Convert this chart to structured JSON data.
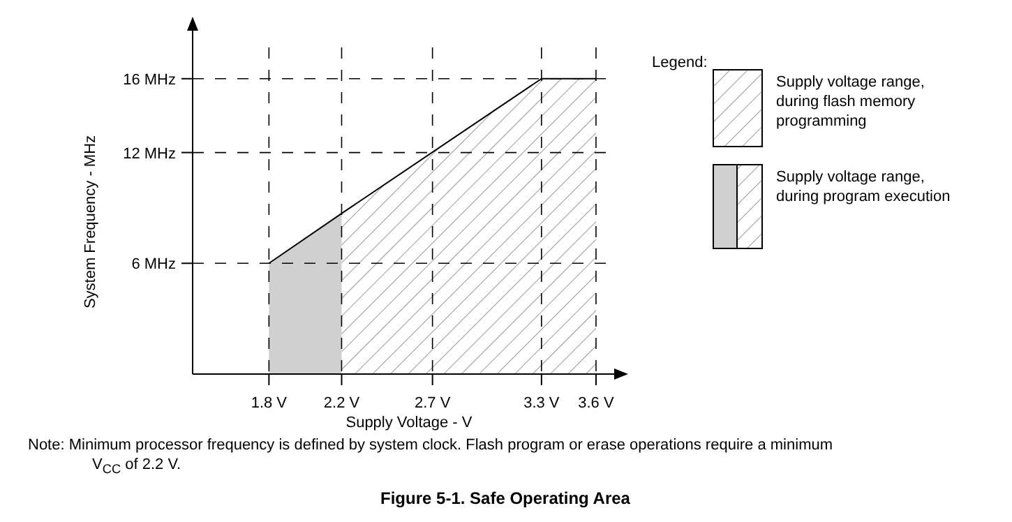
{
  "chart_data": {
    "type": "area",
    "title": "Figure 5-1. Safe Operating Area",
    "xlabel": "Supply Voltage - V",
    "ylabel": "System Frequency - MHz",
    "legend_title": "Legend:",
    "legend": "right",
    "grid": true,
    "xlim": [
      1.38,
      3.7
    ],
    "ylim": [
      0,
      18.6
    ],
    "xticks": [
      {
        "value": 1.8,
        "label": "1.8 V"
      },
      {
        "value": 2.2,
        "label": "2.2 V"
      },
      {
        "value": 2.7,
        "label": "2.7 V"
      },
      {
        "value": 3.3,
        "label": "3.3 V"
      },
      {
        "value": 3.6,
        "label": "3.6 V"
      }
    ],
    "yticks": [
      {
        "value": 6,
        "label": "6 MHz"
      },
      {
        "value": 12,
        "label": "12 MHz"
      },
      {
        "value": 16,
        "label": "16 MHz"
      }
    ],
    "series": [
      {
        "name": "Supply voltage range, during flash memory programming",
        "color": "#808080",
        "x": [
          2.2,
          3.3,
          3.6
        ],
        "values": [
          8.7,
          16,
          16
        ]
      },
      {
        "name": "Supply voltage range, during program execution",
        "color": "#d0d0d0",
        "x": [
          1.8,
          2.2
        ],
        "values": [
          6,
          8.7
        ]
      }
    ],
    "annotations": [
      "Note: Minimum processor frequency is defined by system clock. Flash program or erase operations require a minimum V$_{CC}$ of 2.2 V."
    ]
  }
}
